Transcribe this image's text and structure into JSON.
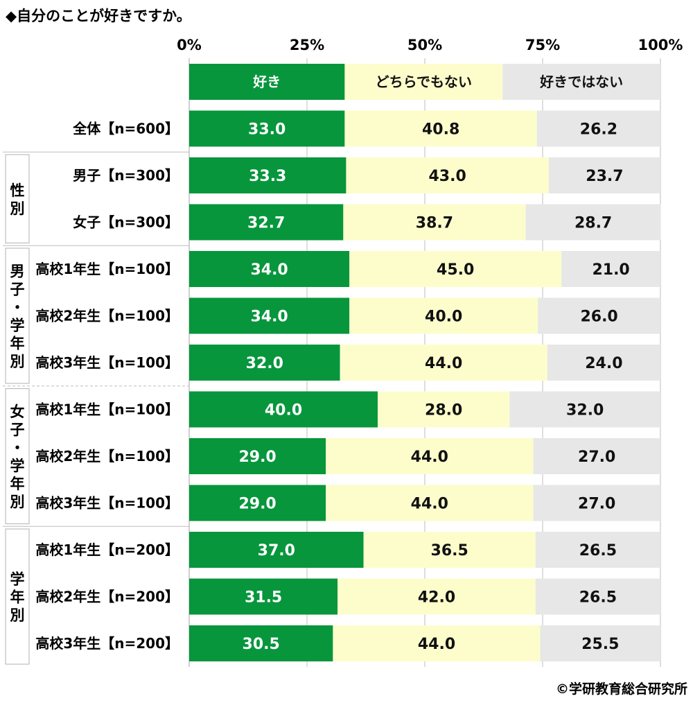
{
  "chart_data": {
    "type": "bar",
    "orientation": "horizontal",
    "stacked": true,
    "title": "◆自分のことが好きですか。",
    "x_ticks": [
      "0%",
      "25%",
      "50%",
      "75%",
      "100%"
    ],
    "xlim": [
      0,
      100
    ],
    "grid": true,
    "legend": {
      "placement": "top",
      "labels": [
        "好き",
        "どちらでもない",
        "好きではない"
      ]
    },
    "series": [
      {
        "name": "好き",
        "color": "#07963c",
        "label_color": "#ffffff"
      },
      {
        "name": "どちらでもない",
        "color": "#fdfdcc",
        "label_color": "#111111"
      },
      {
        "name": "好きではない",
        "color": "#e7e7e7",
        "label_color": "#111111"
      }
    ],
    "categories": [
      "全体【n=600】",
      "男子【n=300】",
      "女子【n=300】",
      "高校1年生【n=100】",
      "高校2年生【n=100】",
      "高校3年生【n=100】",
      "高校1年生【n=100】",
      "高校2年生【n=100】",
      "高校3年生【n=100】",
      "高校1年生【n=200】",
      "高校2年生【n=200】",
      "高校3年生【n=200】"
    ],
    "values": [
      [
        33.0,
        40.8,
        26.2
      ],
      [
        33.3,
        43.0,
        23.7
      ],
      [
        32.7,
        38.7,
        28.7
      ],
      [
        34.0,
        45.0,
        21.0
      ],
      [
        34.0,
        40.0,
        26.0
      ],
      [
        32.0,
        44.0,
        24.0
      ],
      [
        40.0,
        28.0,
        32.0
      ],
      [
        29.0,
        44.0,
        27.0
      ],
      [
        29.0,
        44.0,
        27.0
      ],
      [
        37.0,
        36.5,
        26.5
      ],
      [
        31.5,
        42.0,
        26.5
      ],
      [
        30.5,
        44.0,
        25.5
      ]
    ],
    "value_labels": [
      [
        "33.0",
        "40.8",
        "26.2"
      ],
      [
        "33.3",
        "43.0",
        "23.7"
      ],
      [
        "32.7",
        "38.7",
        "28.7"
      ],
      [
        "34.0",
        "45.0",
        "21.0"
      ],
      [
        "34.0",
        "40.0",
        "26.0"
      ],
      [
        "32.0",
        "44.0",
        "24.0"
      ],
      [
        "40.0",
        "28.0",
        "32.0"
      ],
      [
        "29.0",
        "44.0",
        "27.0"
      ],
      [
        "29.0",
        "44.0",
        "27.0"
      ],
      [
        "37.0",
        "36.5",
        "26.5"
      ],
      [
        "31.5",
        "42.0",
        "26.5"
      ],
      [
        "30.5",
        "44.0",
        "25.5"
      ]
    ],
    "groups": [
      {
        "label": "性別",
        "rows": [
          1,
          2
        ]
      },
      {
        "label": "男子・学年別",
        "rows": [
          3,
          4,
          5
        ]
      },
      {
        "label": "女子・学年別",
        "rows": [
          6,
          7,
          8
        ]
      },
      {
        "label": "学年別",
        "rows": [
          9,
          10,
          11
        ]
      }
    ]
  },
  "footer": {
    "credit": "©学研教育総合研究所"
  }
}
